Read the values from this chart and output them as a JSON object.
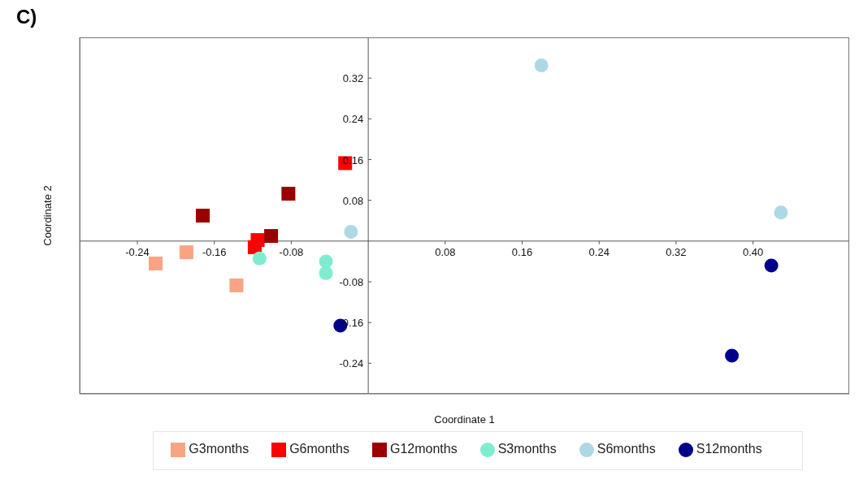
{
  "chart_data": {
    "type": "scatter",
    "title": "C)",
    "xlabel": "Coordinate 1",
    "ylabel": "Coordinate 2",
    "xlim": [
      -0.3,
      0.5
    ],
    "ylim": [
      -0.3,
      0.4
    ],
    "xticks": [
      -0.24,
      -0.16,
      -0.08,
      0.08,
      0.16,
      0.24,
      0.32,
      {
        "value": 0.4,
        "label": "0.40"
      }
    ],
    "yticks": [
      -0.24,
      -0.16,
      -0.08,
      0.08,
      0.16,
      0.24,
      0.32
    ],
    "grid": false,
    "legend": "bottom",
    "series": [
      {
        "name": "G3months",
        "color": "#f8a482",
        "marker": "square",
        "x": [
          -0.221,
          -0.189,
          -0.137
        ],
        "values": [
          -0.044,
          -0.022,
          -0.087
        ]
      },
      {
        "name": "G6months",
        "color": "#ff0000",
        "marker": "square",
        "x": [
          -0.024,
          -0.115,
          -0.118
        ],
        "values": [
          0.153,
          0.002,
          -0.012
        ]
      },
      {
        "name": "G12months",
        "color": "#9b0000",
        "marker": "square",
        "x": [
          -0.172,
          -0.083,
          -0.101
        ],
        "values": [
          0.05,
          0.093,
          0.01
        ]
      },
      {
        "name": "S3months",
        "color": "#7fecd0",
        "marker": "circle",
        "x": [
          -0.113,
          -0.044,
          -0.044
        ],
        "values": [
          -0.034,
          -0.04,
          -0.063
        ]
      },
      {
        "name": "S6months",
        "color": "#add8e6",
        "marker": "circle",
        "x": [
          0.18,
          0.429,
          -0.018
        ],
        "values": [
          0.345,
          0.056,
          0.018
        ]
      },
      {
        "name": "S12months",
        "color": "#00008b",
        "marker": "circle",
        "x": [
          -0.029,
          0.419,
          0.378
        ],
        "values": [
          -0.166,
          -0.048,
          -0.225
        ]
      }
    ]
  }
}
